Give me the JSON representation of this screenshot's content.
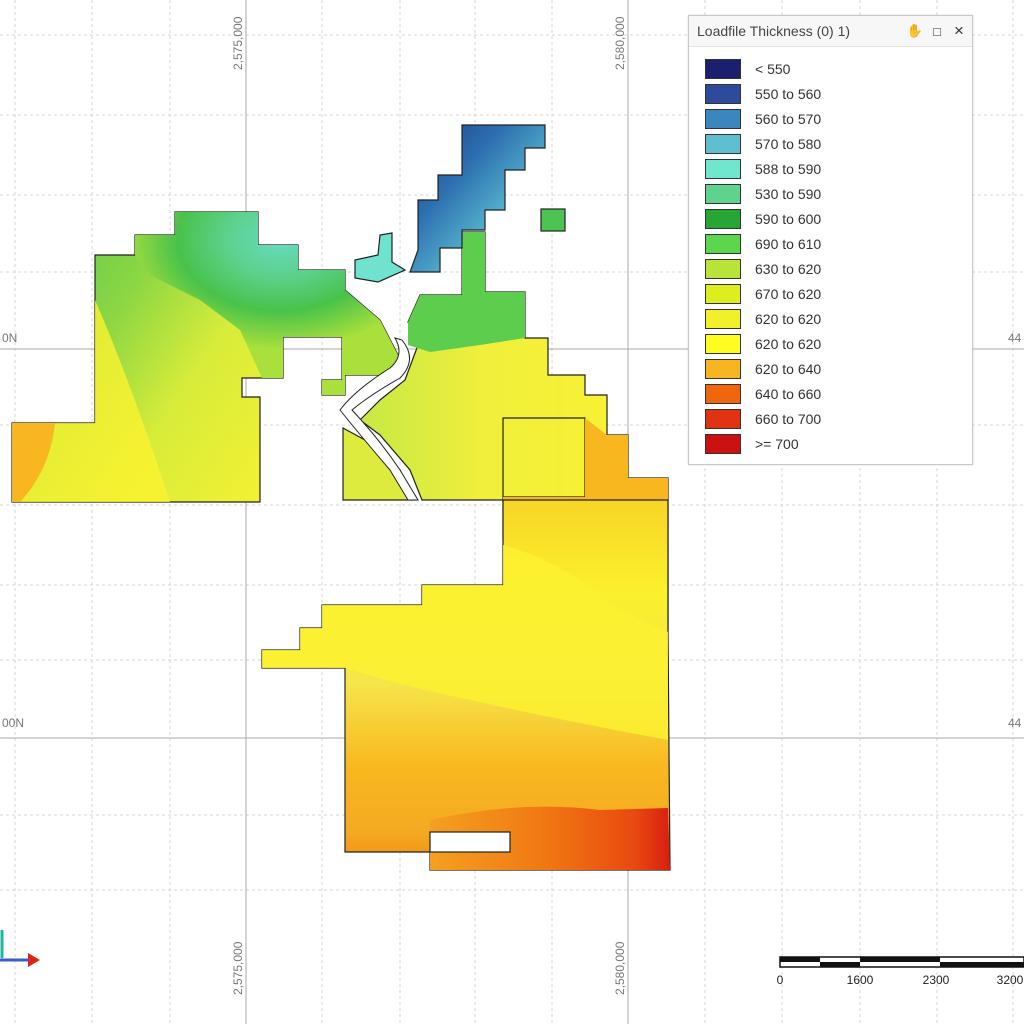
{
  "map": {
    "grid_labels": {
      "top_left": "2,575,000",
      "top_right": "2,580,000",
      "bottom_left": "2,575,000",
      "bottom_right": "2,580,000",
      "left_upper": "0N",
      "left_lower": "00N",
      "right_upper": "44",
      "right_lower": "44"
    }
  },
  "legend": {
    "title": "Loadfile Thickness (0) 1)",
    "items": [
      {
        "label": "< 550",
        "color": "#1a1f6e"
      },
      {
        "label": "550 to 560",
        "color": "#2e4a9c"
      },
      {
        "label": "560 to 570",
        "color": "#3a86bd"
      },
      {
        "label": "570 to 580",
        "color": "#5fbfd0"
      },
      {
        "label": "588 to 590",
        "color": "#6fe6cd"
      },
      {
        "label": "530 to 590",
        "color": "#5fd38d"
      },
      {
        "label": "590 to 600",
        "color": "#27a535"
      },
      {
        "label": "690 to 610",
        "color": "#5cd64c"
      },
      {
        "label": "630 to 620",
        "color": "#b8e43a"
      },
      {
        "label": "670 to 620",
        "color": "#ddee1e"
      },
      {
        "label": "620 to 620",
        "color": "#f2f02a"
      },
      {
        "label": "620 to 620",
        "color": "#fffd20"
      },
      {
        "label": "620 to 640",
        "color": "#f7b521"
      },
      {
        "label": "640 to 660",
        "color": "#f0660f"
      },
      {
        "label": "660 to 700",
        "color": "#e13212"
      },
      {
        "label": ">= 700",
        "color": "#cc1111"
      }
    ],
    "icons": {
      "pin": "pin-icon",
      "maximize": "maximize-icon",
      "close": "close-icon"
    },
    "pin_glyph": "✋",
    "maximize_glyph": "□",
    "close_glyph": "×"
  },
  "scale_bar": {
    "labels": [
      "0",
      "1600",
      "2300",
      "3200"
    ]
  },
  "colors": {
    "orange": "#f8b71e",
    "yellow": "#fbf230",
    "green": "#5cc94a",
    "teal": "#6be0c8",
    "blue": "#1e4f96",
    "red": "#e02d12"
  }
}
